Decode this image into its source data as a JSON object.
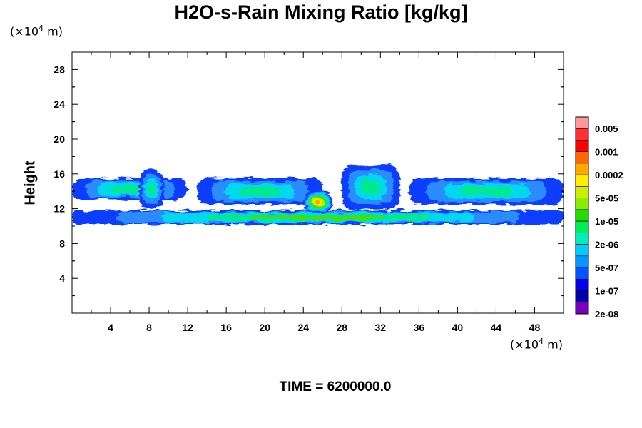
{
  "chart_data": {
    "type": "contour",
    "title": "H2O-s-Rain Mixing Ratio [kg/kg]",
    "ylabel": "Height",
    "xunit": {
      "prefix": "(×10",
      "exp": "4",
      "suffix": " m)"
    },
    "yunit": {
      "prefix": "(×10",
      "exp": "4",
      "suffix": " m)"
    },
    "xlim": [
      0,
      51
    ],
    "ylim": [
      0,
      30
    ],
    "xticks": [
      "4",
      "8",
      "12",
      "16",
      "20",
      "24",
      "28",
      "32",
      "36",
      "40",
      "44",
      "48"
    ],
    "yticks": [
      "4",
      "8",
      "12",
      "16",
      "20",
      "24",
      "28"
    ],
    "legend": {
      "labels": [
        "0.005",
        "0.001",
        "0.0002",
        "5e-05",
        "1e-05",
        "2e-06",
        "5e-07",
        "1e-07",
        "2e-08"
      ],
      "colors": [
        "#ff9a9a",
        "#ff3030",
        "#ff0000",
        "#ff6600",
        "#ffaa00",
        "#ffee00",
        "#ccee00",
        "#88ee00",
        "#22dd00",
        "#00ee55",
        "#00eebb",
        "#00ccff",
        "#0099ff",
        "#0055ff",
        "#0000ee",
        "#0000aa",
        "#7a00b8"
      ]
    },
    "fields": [
      {
        "name": "core-left",
        "x": [
          0,
          12
        ],
        "y": [
          13,
          15.5
        ],
        "level": "5e-07"
      },
      {
        "name": "tower-8",
        "x": [
          7,
          9.5
        ],
        "y": [
          12,
          16.5
        ],
        "level": "5e-07"
      },
      {
        "name": "layer-low",
        "x": [
          0,
          51
        ],
        "y": [
          10.2,
          11.8
        ],
        "level": "2e-06"
      },
      {
        "name": "core-mid",
        "x": [
          13,
          26
        ],
        "y": [
          12.5,
          15.5
        ],
        "level": "5e-07"
      },
      {
        "name": "max-25",
        "x": [
          24,
          27
        ],
        "y": [
          11.5,
          14
        ],
        "level": "0.0002"
      },
      {
        "name": "tower-29",
        "x": [
          28,
          34
        ],
        "y": [
          12,
          17
        ],
        "level": "5e-07"
      },
      {
        "name": "core-right",
        "x": [
          35,
          51
        ],
        "y": [
          12.5,
          15.5
        ],
        "level": "5e-07"
      }
    ]
  },
  "time_label": "TIME = 6200000.0"
}
